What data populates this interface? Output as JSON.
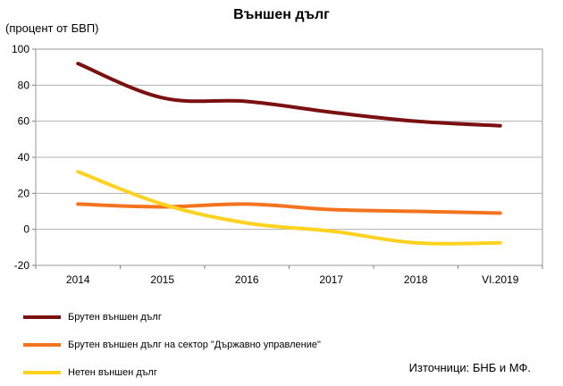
{
  "chart_data": {
    "type": "line",
    "title": "Външен дълг",
    "ylabel": "(процент от БВП)",
    "xlabel": "",
    "categories": [
      "2014",
      "2015",
      "2016",
      "2017",
      "2018",
      "VI.2019"
    ],
    "ylim": [
      -20,
      100
    ],
    "yticks": [
      -20,
      0,
      20,
      40,
      60,
      80,
      100
    ],
    "grid": true,
    "legend_position": "bottom",
    "series": [
      {
        "name": "Брутен външен дълг",
        "color": "#7b1010",
        "values": [
          92,
          73,
          71,
          65,
          60,
          57.5
        ]
      },
      {
        "name": "Брутен външен дълг на сектор \"Държавно управление\"",
        "color": "#f4731e",
        "values": [
          14,
          12.5,
          14,
          11,
          10,
          9
        ]
      },
      {
        "name": "Нетен външен дълг",
        "color": "#ffd21f",
        "values": [
          32,
          14,
          3.5,
          -1,
          -7.5,
          -7.5
        ]
      }
    ],
    "source": "Източници: БНБ и МФ."
  }
}
